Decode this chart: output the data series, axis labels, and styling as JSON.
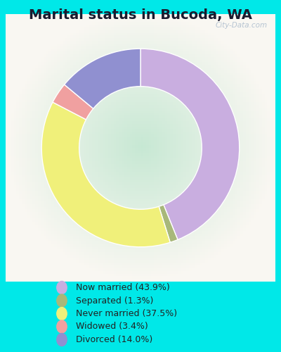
{
  "title": "Marital status in Bucoda, WA",
  "values": [
    43.9,
    1.3,
    37.5,
    3.4,
    14.0
  ],
  "colors": [
    "#c9aee0",
    "#a8b87a",
    "#f0f07a",
    "#f0a0a0",
    "#9090d0"
  ],
  "legend_labels": [
    "Now married (43.9%)",
    "Separated (1.3%)",
    "Never married (37.5%)",
    "Widowed (3.4%)",
    "Divorced (14.0%)"
  ],
  "bg_outer": "#00e8e8",
  "bg_inner_color1": "#c8e8d4",
  "bg_inner_color2": "#eef8f0",
  "title_fontsize": 14,
  "watermark": "City-Data.com",
  "donut_width": 0.38,
  "startangle": 90
}
